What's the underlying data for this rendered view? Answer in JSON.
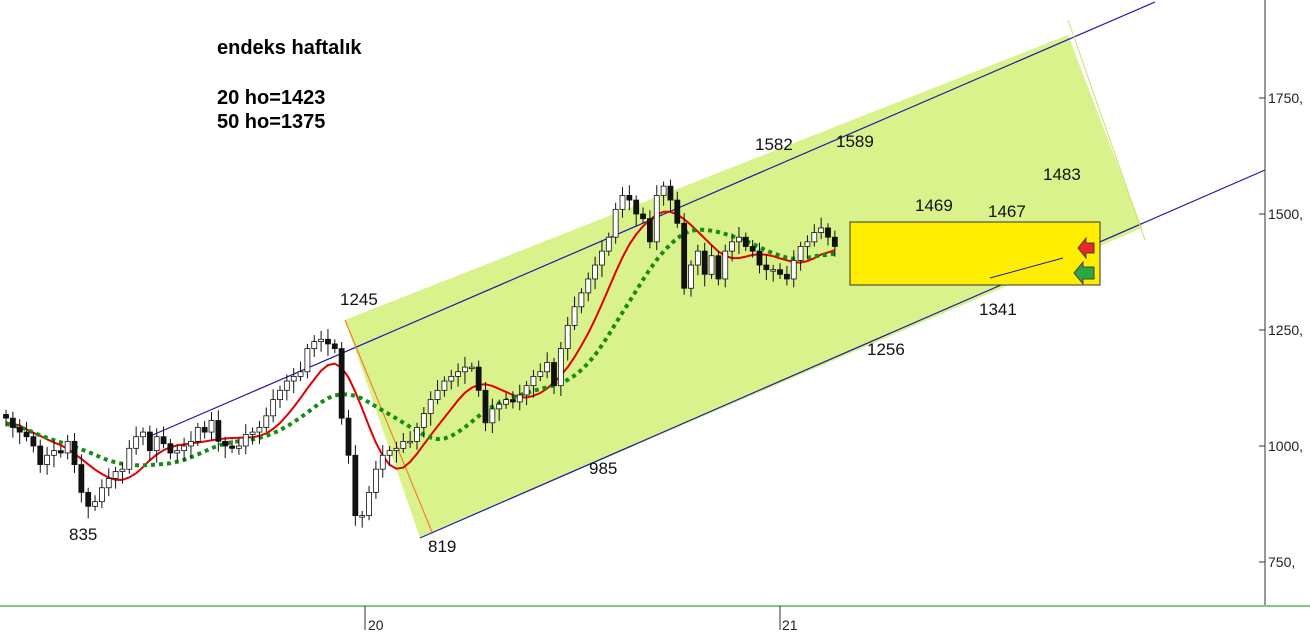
{
  "notes": {
    "title": "endeks haftalık",
    "ma20": "20 ho=1423",
    "ma50": "50 ho=1375"
  },
  "colors": {
    "channel_fill": "#d9f28c",
    "channel_line": "#1a1aa8",
    "box_fill": "#ffee00",
    "ma20": "#e00000",
    "ma50": "#178a17",
    "up_arrow": "#e8282a",
    "down_arrow": "#2aa844",
    "axis": "#333333",
    "bottom_line": "#5ab55a"
  },
  "icons": {
    "red_arrow": "left-arrow-icon",
    "green_arrow": "left-arrow-icon"
  },
  "chart_data": {
    "type": "candlestick",
    "title": "",
    "y_axis": {
      "ticks": [
        750,
        1000,
        1250,
        1500,
        1750
      ],
      "tick_labels": [
        "750,",
        "1000,",
        "1250,",
        "1500,",
        "1750,"
      ],
      "ylim": [
        680,
        1900
      ],
      "position": "right"
    },
    "x_axis": {
      "tick_labels": [
        "20",
        "21"
      ]
    },
    "annotations": [
      {
        "text": "835",
        "value": 835
      },
      {
        "text": "1245",
        "value": 1245
      },
      {
        "text": "819",
        "value": 819
      },
      {
        "text": "985",
        "value": 985
      },
      {
        "text": "1582",
        "value": 1582
      },
      {
        "text": "1589",
        "value": 1589
      },
      {
        "text": "1256",
        "value": 1256
      },
      {
        "text": "1469",
        "value": 1469
      },
      {
        "text": "1467",
        "value": 1467
      },
      {
        "text": "1341",
        "value": 1341
      },
      {
        "text": "1483",
        "value": 1483
      }
    ],
    "closes": [
      1060,
      1040,
      1030,
      1020,
      1000,
      960,
      980,
      990,
      985,
      1010,
      960,
      900,
      870,
      880,
      910,
      930,
      945,
      950,
      995,
      1020,
      1030,
      990,
      1020,
      1005,
      985,
      990,
      1000,
      1010,
      1040,
      1030,
      1055,
      1010,
      1000,
      995,
      1000,
      1025,
      1030,
      1040,
      1065,
      1100,
      1120,
      1140,
      1150,
      1160,
      1210,
      1225,
      1230,
      1220,
      1210,
      1060,
      980,
      850,
      850,
      900,
      950,
      980,
      990,
      995,
      1010,
      1010,
      1040,
      1070,
      1100,
      1120,
      1140,
      1150,
      1160,
      1170,
      1170,
      1120,
      1050,
      1080,
      1090,
      1100,
      1095,
      1110,
      1130,
      1150,
      1160,
      1180,
      1130,
      1210,
      1260,
      1300,
      1330,
      1360,
      1390,
      1420,
      1450,
      1510,
      1540,
      1530,
      1500,
      1490,
      1440,
      1540,
      1560,
      1530,
      1480,
      1340,
      1390,
      1420,
      1370,
      1410,
      1360,
      1420,
      1440,
      1450,
      1430,
      1420,
      1390,
      1380,
      1380,
      1370,
      1360,
      1400,
      1430,
      1440,
      1460,
      1470,
      1450,
      1430
    ],
    "series": [
      {
        "name": "20 ho",
        "last": 1423
      },
      {
        "name": "50 ho",
        "last": 1375
      }
    ],
    "grid": false,
    "legend": "none"
  }
}
